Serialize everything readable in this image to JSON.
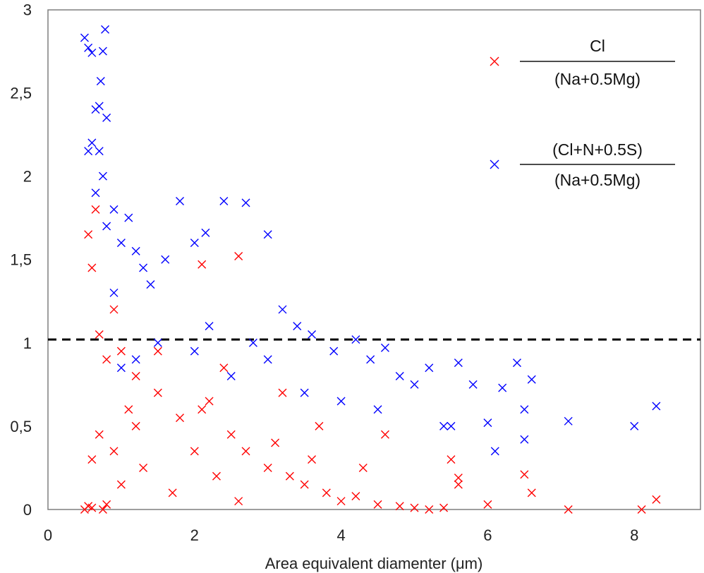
{
  "chart_data": {
    "type": "scatter",
    "title": "",
    "xlabel": "Area equivalent diamenter (μm)",
    "ylabel": "",
    "xlim": [
      0,
      9.0
    ],
    "ylim": [
      0,
      3
    ],
    "x_ticks": [
      0,
      2,
      4,
      6,
      8
    ],
    "x_tick_labels": [
      "0",
      "2",
      "4",
      "6",
      "8"
    ],
    "y_ticks": [
      0,
      0.5,
      1,
      1.5,
      2,
      2.5,
      3
    ],
    "y_tick_labels": [
      "0",
      "0,5",
      "1",
      "1,5",
      "2",
      "2,5",
      "3"
    ],
    "grid": false,
    "marker": "x",
    "reference_line": {
      "y": 1.02,
      "style": "dashed",
      "color": "#000000"
    },
    "legend": {
      "placement": "top-right",
      "entries": [
        {
          "series": "cl",
          "numerator": "Cl",
          "denominator": "(Na+0.5Mg)"
        },
        {
          "series": "cln",
          "numerator": "(Cl+N+0.5S)",
          "denominator": "(Na+0.5Mg)"
        }
      ]
    },
    "series": [
      {
        "key": "cl",
        "name": "Cl/(Na+0.5Mg)",
        "color": "#ff0000",
        "x": [
          0.5,
          0.55,
          0.6,
          0.75,
          0.8,
          0.55,
          0.6,
          0.9,
          1.0,
          1.2,
          1.5,
          1.8,
          2.1,
          2.2,
          2.5,
          2.7,
          3.0,
          3.3,
          3.5,
          3.8,
          4.0,
          4.2,
          4.5,
          4.8,
          5.0,
          5.2,
          5.4,
          5.6,
          5.6,
          6.0,
          6.5,
          6.6,
          7.1,
          8.1,
          8.3,
          0.6,
          0.7,
          1.0,
          1.3,
          1.7,
          2.0,
          2.3,
          2.6,
          3.1,
          3.6,
          4.3,
          2.1,
          2.6,
          1.2,
          0.8,
          0.65,
          0.7,
          1.5,
          1.1,
          0.9,
          2.4,
          3.2,
          3.7,
          4.6,
          5.5
        ],
        "y": [
          0.0,
          0.02,
          0.01,
          0.0,
          0.03,
          1.65,
          1.45,
          1.2,
          0.95,
          0.8,
          0.7,
          0.55,
          0.6,
          0.65,
          0.45,
          0.35,
          0.25,
          0.2,
          0.15,
          0.1,
          0.05,
          0.08,
          0.03,
          0.02,
          0.01,
          0.0,
          0.01,
          0.19,
          0.15,
          0.03,
          0.21,
          0.1,
          0.0,
          0.0,
          0.06,
          0.3,
          0.45,
          0.15,
          0.25,
          0.1,
          0.35,
          0.2,
          0.05,
          0.4,
          0.3,
          0.25,
          1.47,
          1.52,
          0.5,
          0.9,
          1.8,
          1.05,
          0.95,
          0.6,
          0.35,
          0.85,
          0.7,
          0.5,
          0.45,
          0.3
        ]
      },
      {
        "key": "cln",
        "name": "(Cl+N+0.5S)/(Na+0.5Mg)",
        "color": "#0000ff",
        "x": [
          0.5,
          0.55,
          0.6,
          0.65,
          0.7,
          0.72,
          0.75,
          0.78,
          0.8,
          0.55,
          0.6,
          0.65,
          0.7,
          0.75,
          0.8,
          0.9,
          1.0,
          1.1,
          1.2,
          1.3,
          1.4,
          1.6,
          1.8,
          2.0,
          2.15,
          2.4,
          2.7,
          3.0,
          3.2,
          3.4,
          3.6,
          3.9,
          4.2,
          4.4,
          4.6,
          4.8,
          5.0,
          5.2,
          5.4,
          5.6,
          5.8,
          6.0,
          6.2,
          6.4,
          6.5,
          6.6,
          7.1,
          8.0,
          8.3,
          1.5,
          2.0,
          2.5,
          3.0,
          3.5,
          4.0,
          4.5,
          5.5,
          6.1,
          6.5,
          1.0,
          1.2,
          0.9,
          2.2,
          2.8
        ],
        "y": [
          2.83,
          2.77,
          2.74,
          2.4,
          2.42,
          2.57,
          2.75,
          2.88,
          2.35,
          2.15,
          2.2,
          1.9,
          2.15,
          2.0,
          1.7,
          1.8,
          1.6,
          1.75,
          1.55,
          1.45,
          1.35,
          1.5,
          1.85,
          1.6,
          1.66,
          1.85,
          1.84,
          1.65,
          1.2,
          1.1,
          1.05,
          0.95,
          1.02,
          0.9,
          0.97,
          0.8,
          0.75,
          0.85,
          0.5,
          0.88,
          0.75,
          0.52,
          0.73,
          0.88,
          0.6,
          0.78,
          0.53,
          0.5,
          0.62,
          1.0,
          0.95,
          0.8,
          0.9,
          0.7,
          0.65,
          0.6,
          0.5,
          0.35,
          0.42,
          0.85,
          0.9,
          1.3,
          1.1,
          1.0
        ]
      }
    ]
  }
}
